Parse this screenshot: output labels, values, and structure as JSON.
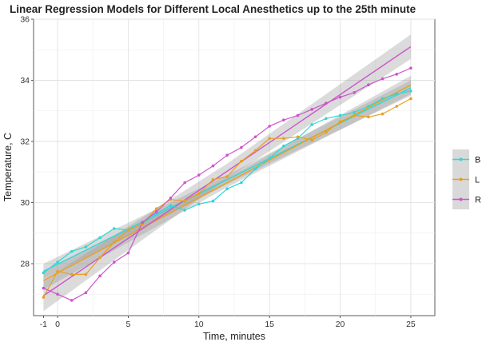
{
  "chart_data": {
    "type": "line",
    "title": "Linear Regression Models for Different Local Anesthetics up to the 25th minute",
    "xlabel": "Time, minutes",
    "ylabel": "Temperature, C",
    "xlim": [
      -1.7,
      26.7
    ],
    "ylim": [
      26.3,
      36
    ],
    "xticks": [
      -1,
      0,
      5,
      10,
      15,
      20,
      25
    ],
    "yticks": [
      28,
      30,
      32,
      34,
      36
    ],
    "legend_position": "right",
    "grid": true,
    "series": [
      {
        "name": "B",
        "color": "#33d6d6",
        "x": [
          -1,
          0,
          1,
          2,
          3,
          4,
          5,
          6,
          7,
          8,
          9,
          10,
          11,
          12,
          13,
          14,
          15,
          16,
          17,
          18,
          19,
          20,
          21,
          22,
          23,
          24,
          25
        ],
        "y": [
          27.7,
          28.05,
          28.4,
          28.55,
          28.85,
          29.15,
          29.1,
          29.3,
          29.65,
          29.9,
          29.75,
          29.95,
          30.05,
          30.45,
          30.65,
          31.1,
          31.45,
          31.85,
          32.1,
          32.55,
          32.75,
          32.85,
          32.95,
          33.15,
          33.4,
          33.55,
          33.65
        ],
        "fit": {
          "y_start": 27.75,
          "y_end": 33.75,
          "band": [
            0.25,
            0.15,
            0.25
          ]
        }
      },
      {
        "name": "L",
        "color": "#e8a020",
        "x": [
          -1,
          0,
          1,
          2,
          3,
          4,
          5,
          6,
          7,
          8,
          9,
          10,
          11,
          12,
          13,
          14,
          15,
          16,
          17,
          18,
          19,
          20,
          21,
          22,
          23,
          24,
          25
        ],
        "y": [
          26.9,
          27.75,
          27.65,
          27.65,
          28.2,
          28.7,
          29.1,
          29.3,
          29.8,
          30.1,
          30.05,
          30.3,
          30.75,
          30.85,
          31.35,
          31.7,
          32.1,
          32.1,
          32.15,
          32.05,
          32.3,
          32.65,
          32.85,
          32.8,
          32.9,
          33.15,
          33.4
        ],
        "fit": {
          "y_start": 27.45,
          "y_end": 33.85,
          "band": [
            0.3,
            0.15,
            0.3
          ]
        }
      },
      {
        "name": "R",
        "color": "#cc55cc",
        "x": [
          -1,
          0,
          1,
          2,
          3,
          4,
          5,
          6,
          7,
          8,
          9,
          10,
          11,
          12,
          13,
          14,
          15,
          16,
          17,
          18,
          19,
          20,
          21,
          22,
          23,
          24,
          25
        ],
        "y": [
          27.2,
          27.0,
          26.8,
          27.05,
          27.6,
          28.05,
          28.35,
          29.35,
          29.7,
          30.15,
          30.65,
          30.9,
          31.2,
          31.55,
          31.8,
          32.15,
          32.5,
          32.7,
          32.85,
          33.05,
          33.25,
          33.45,
          33.6,
          33.85,
          34.05,
          34.2,
          34.4
        ],
        "fit": {
          "y_start": 26.95,
          "y_end": 35.1,
          "band": [
            0.5,
            0.25,
            0.4
          ]
        }
      }
    ]
  }
}
